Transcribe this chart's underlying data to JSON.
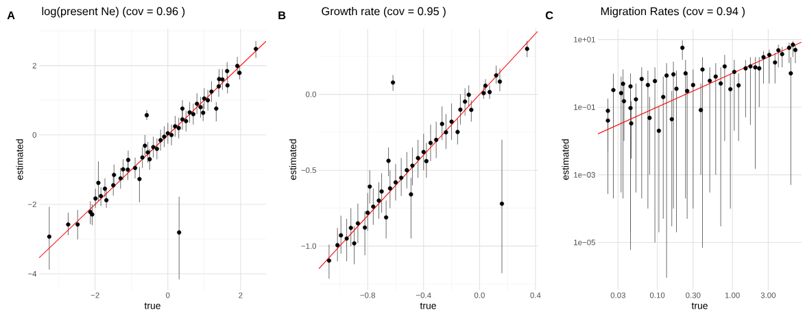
{
  "chart_data": [
    {
      "type": "scatter",
      "title": "log(present Ne) (cov = 0.96 )",
      "xlabel": "true",
      "ylabel": "estimated",
      "annotations": [
        "A"
      ],
      "grid": true,
      "xlim": [
        -3.54,
        2.7
      ],
      "ylim": [
        -4.47,
        3.06
      ],
      "xticks": [
        {
          "value": -2,
          "label": "−2"
        },
        0,
        2
      ],
      "yticks": [
        {
          "value": -4,
          "label": "−4"
        },
        {
          "value": -2,
          "label": "−2"
        },
        0,
        2
      ],
      "series": [
        {
          "color": "#000000",
          "marker": "circle",
          "x": [
            -3.26,
            -2.74,
            -2.48,
            -2.13,
            -2.08,
            -1.99,
            -1.91,
            -1.84,
            -1.73,
            -1.69,
            -1.48,
            -1.23,
            -1.5,
            -1.3,
            -1.09,
            -1.1,
            -0.9,
            -0.78,
            -0.7,
            -0.63,
            -0.58,
            -0.55,
            -0.5,
            -0.4,
            -0.3,
            -0.2,
            -0.1,
            0.0,
            0.1,
            0.2,
            0.31,
            0.3,
            0.4,
            0.4,
            0.5,
            0.6,
            0.7,
            0.8,
            0.9,
            0.97,
            1.0,
            1.1,
            1.2,
            1.33,
            1.4,
            1.41,
            1.5,
            1.63,
            1.64,
            1.91,
            1.97,
            2.42
          ],
          "values": [
            -2.93,
            -2.58,
            -2.58,
            -2.22,
            -2.29,
            -1.83,
            -1.38,
            -1.76,
            -1.55,
            -1.88,
            -1.15,
            -0.99,
            -1.45,
            -1.25,
            -0.72,
            -1.0,
            -0.95,
            -1.27,
            -0.65,
            -0.31,
            0.57,
            -0.5,
            -0.7,
            -0.35,
            -0.4,
            -0.15,
            -0.05,
            0.05,
            0.0,
            0.25,
            -2.81,
            0.2,
            0.45,
            0.76,
            0.4,
            0.65,
            0.6,
            0.9,
            0.8,
            0.64,
            1.05,
            1.0,
            1.25,
            0.76,
            1.4,
            1.61,
            1.6,
            1.84,
            1.43,
            1.99,
            1.79,
            2.48
          ],
          "errors": [
            [
              -3.88,
              -2.07
            ],
            [
              -2.89,
              -2.24
            ],
            [
              -3.01,
              -2.16
            ],
            [
              -2.57,
              -1.91
            ],
            [
              -2.6,
              -2.0
            ],
            [
              -2.1,
              -1.55
            ],
            [
              -1.91,
              -0.76
            ],
            [
              -2.05,
              -1.5
            ],
            [
              -1.8,
              -1.25
            ],
            [
              -2.1,
              -1.6
            ],
            [
              -1.45,
              -0.85
            ],
            [
              -1.3,
              -0.7
            ],
            [
              -1.75,
              -1.15
            ],
            [
              -1.55,
              -0.95
            ],
            [
              -1.0,
              -0.45
            ],
            [
              -1.3,
              -0.7
            ],
            [
              -1.25,
              -0.65
            ],
            [
              -1.94,
              -0.92
            ],
            [
              -0.95,
              -0.35
            ],
            [
              -0.6,
              0.0
            ],
            [
              0.43,
              0.72
            ],
            [
              -0.8,
              -0.2
            ],
            [
              -1.0,
              -0.4
            ],
            [
              -0.65,
              -0.05
            ],
            [
              -0.7,
              -0.1
            ],
            [
              -0.45,
              0.15
            ],
            [
              -0.35,
              0.25
            ],
            [
              -0.25,
              0.35
            ],
            [
              -0.3,
              0.3
            ],
            [
              -0.05,
              0.55
            ],
            [
              -4.16,
              -1.78
            ],
            [
              -0.1,
              0.5
            ],
            [
              0.15,
              0.75
            ],
            [
              0.5,
              1.0
            ],
            [
              0.1,
              0.7
            ],
            [
              0.35,
              0.95
            ],
            [
              0.3,
              0.9
            ],
            [
              0.6,
              1.2
            ],
            [
              0.5,
              1.1
            ],
            [
              0.4,
              0.9
            ],
            [
              0.75,
              1.35
            ],
            [
              0.7,
              1.3
            ],
            [
              0.95,
              1.55
            ],
            [
              0.39,
              0.95
            ],
            [
              1.1,
              1.7
            ],
            [
              1.35,
              1.9
            ],
            [
              1.3,
              1.9
            ],
            [
              1.6,
              2.1
            ],
            [
              1.2,
              1.7
            ],
            [
              1.75,
              2.25
            ],
            [
              1.6,
              2.0
            ],
            [
              2.22,
              2.71
            ]
          ]
        },
        {
          "type": "line",
          "color": "#ff0000",
          "line_style": "solid",
          "x": [
            -3.54,
            2.7
          ],
          "values": [
            -3.54,
            2.7
          ]
        }
      ]
    },
    {
      "type": "scatter",
      "title": "Growth rate (cov = 0.95 )",
      "xlabel": "true",
      "ylabel": "estimated",
      "annotations": [
        "B"
      ],
      "grid": true,
      "xlim": [
        -1.149,
        0.415
      ],
      "ylim": [
        -1.29,
        0.432
      ],
      "xticks": [
        {
          "value": -0.8,
          "label": "−0.8"
        },
        {
          "value": -0.4,
          "label": "−0.4"
        },
        {
          "value": 0,
          "label": "0.0"
        },
        0.4
      ],
      "yticks": [
        {
          "value": -1,
          "label": "−1.0"
        },
        {
          "value": -0.5,
          "label": "−0.5"
        },
        {
          "value": 0,
          "label": "0.0"
        }
      ],
      "series": [
        {
          "color": "#000000",
          "marker": "circle",
          "x": [
            -1.076,
            -1.016,
            -0.991,
            -0.95,
            -0.92,
            -0.896,
            -0.87,
            -0.82,
            -0.785,
            -0.8,
            -0.76,
            -0.72,
            -0.7,
            -0.668,
            -0.651,
            -0.64,
            -0.619,
            -0.6,
            -0.56,
            -0.52,
            -0.49,
            -0.48,
            -0.44,
            -0.4,
            -0.38,
            -0.35,
            -0.31,
            -0.268,
            -0.24,
            -0.2,
            -0.157,
            -0.137,
            -0.104,
            -0.077,
            -0.059,
            0.029,
            0.042,
            0.072,
            0.119,
            0.145,
            0.16,
            0.34
          ],
          "values": [
            -1.096,
            -0.994,
            -0.929,
            -0.95,
            -0.88,
            -0.982,
            -0.85,
            -0.878,
            -0.608,
            -0.78,
            -0.74,
            -0.7,
            -0.64,
            -0.811,
            -0.438,
            -0.62,
            0.078,
            -0.58,
            -0.55,
            -0.5,
            -0.659,
            -0.47,
            -0.42,
            -0.38,
            -0.44,
            -0.32,
            -0.3,
            -0.195,
            -0.25,
            -0.18,
            -0.248,
            -0.101,
            -0.048,
            -0.003,
            -0.102,
            0.008,
            0.057,
            0.015,
            0.125,
            0.084,
            -0.721,
            0.3
          ],
          "errors": [
            [
              -1.215,
              -0.99
            ],
            [
              -1.1,
              -0.88
            ],
            [
              -1.05,
              -0.8
            ],
            [
              -1.1,
              -0.82
            ],
            [
              -1.0,
              -0.75
            ],
            [
              -1.12,
              -0.87
            ],
            [
              -0.98,
              -0.72
            ],
            [
              -1.06,
              -0.77
            ],
            [
              -0.72,
              -0.5
            ],
            [
              -0.9,
              -0.65
            ],
            [
              -0.86,
              -0.62
            ],
            [
              -0.82,
              -0.58
            ],
            [
              -0.78,
              -0.52
            ],
            [
              -0.95,
              -0.7
            ],
            [
              -0.54,
              -0.35
            ],
            [
              -0.75,
              -0.5
            ],
            [
              0.023,
              0.128
            ],
            [
              -0.7,
              -0.46
            ],
            [
              -0.67,
              -0.42
            ],
            [
              -0.62,
              -0.38
            ],
            [
              -0.95,
              -0.55
            ],
            [
              -0.6,
              -0.35
            ],
            [
              -0.55,
              -0.3
            ],
            [
              -0.5,
              -0.26
            ],
            [
              -0.55,
              -0.32
            ],
            [
              -0.44,
              -0.2
            ],
            [
              -0.42,
              -0.18
            ],
            [
              -0.3,
              -0.08
            ],
            [
              -0.36,
              -0.13
            ],
            [
              -0.3,
              -0.06
            ],
            [
              -0.33,
              -0.16
            ],
            [
              -0.2,
              0.0
            ],
            [
              -0.14,
              0.04
            ],
            [
              -0.08,
              0.06
            ],
            [
              -0.18,
              -0.04
            ],
            [
              -0.03,
              0.05
            ],
            [
              0.0,
              0.1
            ],
            [
              -0.03,
              0.06
            ],
            [
              0.07,
              0.19
            ],
            [
              0.02,
              0.17
            ],
            [
              -1.179,
              -0.299
            ],
            [
              0.245,
              0.353
            ]
          ]
        },
        {
          "type": "line",
          "color": "#ff0000",
          "line_style": "solid",
          "x": [
            -1.149,
            0.415
          ],
          "values": [
            -1.149,
            0.415
          ]
        }
      ]
    },
    {
      "type": "scatter",
      "title": "Migration Rates (cov = 0.94 )",
      "xlabel": "true",
      "ylabel": "estimated",
      "annotations": [
        "C"
      ],
      "grid": true,
      "log": "xy",
      "xlim": [
        0.0162,
        8.35
      ],
      "ylim": [
        3.9e-07,
        20.7
      ],
      "xticks": [
        {
          "value": 0.03,
          "label": "0.03"
        },
        {
          "value": 0.1,
          "label": "0.10"
        },
        {
          "value": 0.3,
          "label": "0.30"
        },
        {
          "value": 1,
          "label": "1.00"
        },
        {
          "value": 3,
          "label": "3.00"
        }
      ],
      "yticks": [
        {
          "value": 1e-05,
          "label": "1e−05"
        },
        {
          "value": 0.001,
          "label": "1e−03"
        },
        {
          "value": 0.1,
          "label": "1e−01"
        },
        {
          "value": 10,
          "label": "1e+01"
        }
      ],
      "series": [
        {
          "color": "#000000",
          "marker": "circle",
          "x": [
            0.022,
            0.022,
            0.026,
            0.033,
            0.035,
            0.036,
            0.044,
            0.044,
            0.045,
            0.052,
            0.062,
            0.075,
            0.079,
            0.105,
            0.093,
            0.12,
            0.133,
            0.156,
            0.164,
            0.18,
            0.216,
            0.238,
            0.25,
            0.3,
            0.38,
            0.4,
            0.5,
            0.6,
            0.7,
            0.79,
            0.94,
            1.06,
            1.21,
            1.5,
            1.74,
            2.02,
            2.28,
            2.6,
            3.1,
            3.7,
            4.1,
            4.6,
            5.7,
            6.0,
            6.4,
            6.9
          ],
          "values": [
            0.078,
            0.04,
            0.32,
            0.26,
            0.49,
            0.15,
            0.41,
            0.094,
            0.033,
            0.17,
            0.68,
            0.45,
            0.048,
            0.02,
            0.59,
            0.2,
            0.86,
            0.044,
            0.93,
            0.35,
            5.7,
            1.0,
            0.3,
            0.45,
            0.082,
            1.3,
            0.6,
            0.8,
            0.5,
            1.6,
            0.34,
            1.1,
            0.44,
            1.4,
            1.6,
            1.5,
            1.4,
            3.0,
            3.5,
            2.1,
            4.8,
            3.7,
            5.7,
            1.0,
            7.0,
            4.9
          ],
          "errors": [
            [
              0.00027,
              0.18
            ],
            [
              0.005,
              0.1
            ],
            [
              0.0002,
              0.98
            ],
            [
              0.0003,
              0.8
            ],
            [
              0.0002,
              1.3
            ],
            [
              0.01,
              0.5
            ],
            [
              6e-06,
              1.0
            ],
            [
              2e-05,
              0.3
            ],
            [
              0.003,
              0.15
            ],
            [
              0.0003,
              0.5
            ],
            [
              0.0002,
              1.5
            ],
            [
              0.0001,
              1.2
            ],
            [
              0.001,
              0.2
            ],
            [
              2e-05,
              0.1
            ],
            [
              1e-05,
              1.5
            ],
            [
              5e-05,
              0.8
            ],
            [
              9e-07,
              2.0
            ],
            [
              3e-05,
              0.3
            ],
            [
              0.0001,
              2.2
            ],
            [
              2e-05,
              1.2
            ],
            [
              2.5,
              9.5
            ],
            [
              0.0002,
              2.5
            ],
            [
              5e-05,
              1.0
            ],
            [
              0.0001,
              1.3
            ],
            [
              0.001,
              0.5
            ],
            [
              7e-06,
              3.0
            ],
            [
              0.0003,
              1.5
            ],
            [
              0.001,
              2.0
            ],
            [
              3e-05,
              1.5
            ],
            [
              0.01,
              3.5
            ],
            [
              0.0001,
              1.0
            ],
            [
              0.02,
              2.5
            ],
            [
              0.01,
              1.0
            ],
            [
              0.05,
              2.5
            ],
            [
              0.03,
              3.0
            ],
            [
              0.0015,
              3.0
            ],
            [
              0.1,
              3.0
            ],
            [
              0.5,
              4.5
            ],
            [
              0.5,
              5.0
            ],
            [
              0.5,
              4.0
            ],
            [
              1.5,
              7.0
            ],
            [
              1.5,
              6.0
            ],
            [
              2.0,
              8.0
            ],
            [
              0.0005,
              3.0
            ],
            [
              3.0,
              9.0
            ],
            [
              2.0,
              7.0
            ]
          ]
        },
        {
          "type": "line",
          "color": "#ff0000",
          "line_style": "solid",
          "x": [
            0.0162,
            8.35
          ],
          "values": [
            0.0162,
            8.35
          ]
        }
      ]
    }
  ]
}
